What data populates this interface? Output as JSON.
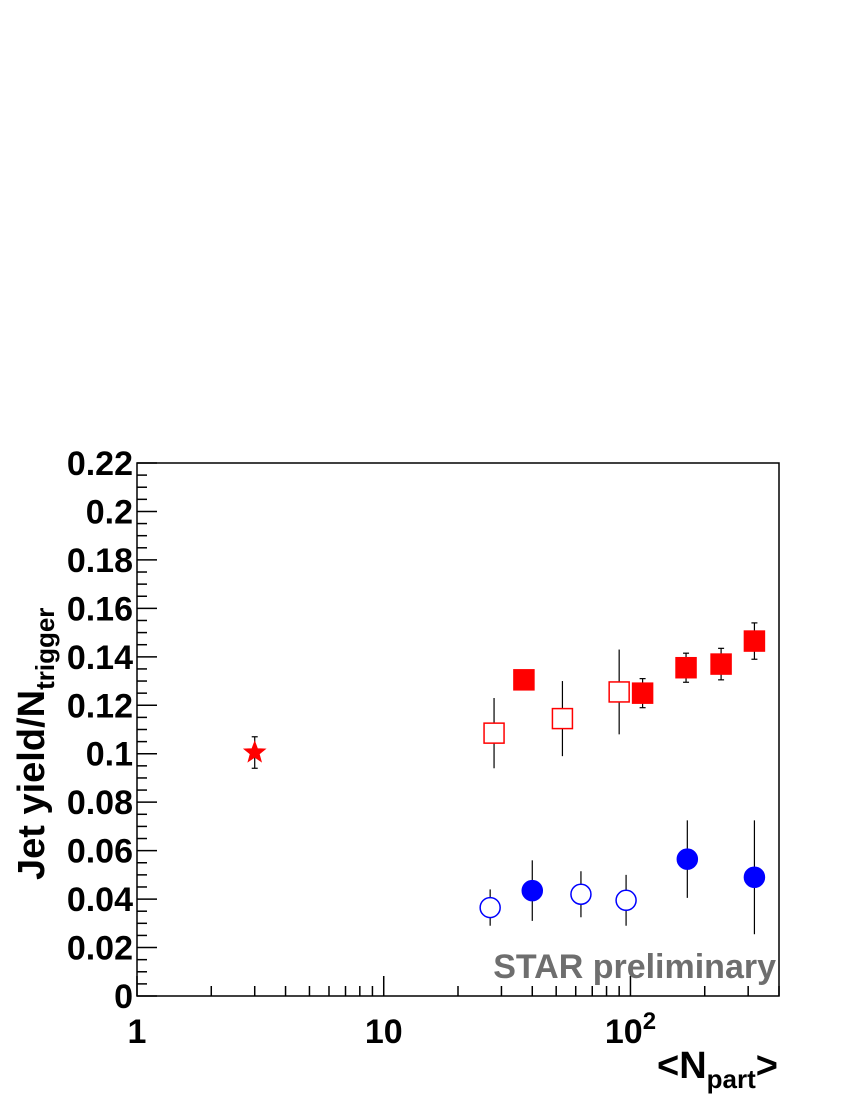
{
  "chart_data": {
    "type": "scatter",
    "xscale": "log",
    "xlim": [
      1,
      400
    ],
    "ylim": [
      0,
      0.22
    ],
    "grid": false,
    "x_ticks": [
      {
        "value": 1,
        "label": "1"
      },
      {
        "value": 10,
        "label": "10"
      },
      {
        "value": 100,
        "label": "10",
        "sup": "2"
      }
    ],
    "y_ticks": [
      "0",
      "0.02",
      "0.04",
      "0.06",
      "0.08",
      "0.1",
      "0.12",
      "0.14",
      "0.16",
      "0.18",
      "0.2",
      "0.22"
    ],
    "xlabel": {
      "main": "<N",
      "sub": "part",
      "tail": ">"
    },
    "ylabel": {
      "main": "Jet yield/N",
      "sub": "trigger"
    },
    "annotation": "STAR preliminary",
    "series": [
      {
        "marker": "star",
        "color": "#ff0000",
        "filled": true,
        "points": [
          {
            "x": 3,
            "y": 0.1005,
            "err": 0.0065
          }
        ]
      },
      {
        "marker": "square",
        "color": "#ff0000",
        "filled": true,
        "points": [
          {
            "x": 37,
            "y": 0.1305,
            "err": 0.001
          },
          {
            "x": 112,
            "y": 0.125,
            "err": 0.006
          },
          {
            "x": 168,
            "y": 0.1355,
            "err": 0.006
          },
          {
            "x": 233,
            "y": 0.137,
            "err": 0.0065
          },
          {
            "x": 318,
            "y": 0.1465,
            "err": 0.0075
          }
        ]
      },
      {
        "marker": "square",
        "color": "#ff0000",
        "filled": false,
        "points": [
          {
            "x": 28,
            "y": 0.1085,
            "err": 0.0145
          },
          {
            "x": 53,
            "y": 0.1145,
            "err": 0.0155
          },
          {
            "x": 90,
            "y": 0.1255,
            "err": 0.0175
          }
        ]
      },
      {
        "marker": "circle",
        "color": "#0000ff",
        "filled": true,
        "points": [
          {
            "x": 40,
            "y": 0.0435,
            "err": 0.0125
          },
          {
            "x": 170,
            "y": 0.0565,
            "err": 0.016
          },
          {
            "x": 318,
            "y": 0.049,
            "err": 0.0235
          }
        ]
      },
      {
        "marker": "circle",
        "color": "#0000ff",
        "filled": false,
        "points": [
          {
            "x": 27,
            "y": 0.0365,
            "err": 0.0075
          },
          {
            "x": 63,
            "y": 0.042,
            "err": 0.0095
          },
          {
            "x": 96,
            "y": 0.0395,
            "err": 0.0105
          }
        ]
      }
    ]
  }
}
